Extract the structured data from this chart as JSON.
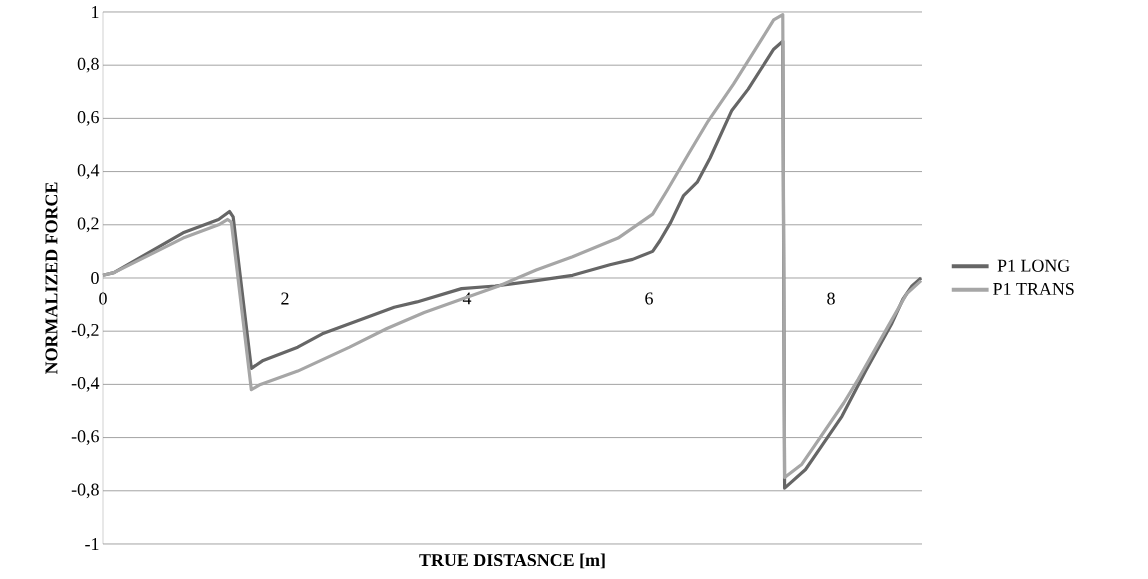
{
  "chart_data": {
    "type": "line",
    "xlabel": "TRUE DISTASNCE [m]",
    "ylabel": "NORMALIZED FORCE",
    "xlim": [
      0,
      9
    ],
    "xticks": [
      0,
      2,
      4,
      6,
      8
    ],
    "ylim": [
      -1,
      1
    ],
    "yticks": [
      {
        "value": -1,
        "label": "-1"
      },
      {
        "value": -0.8,
        "label": "-0,8"
      },
      {
        "value": -0.6,
        "label": "-0,6"
      },
      {
        "value": -0.4,
        "label": "-0,4"
      },
      {
        "value": -0.2,
        "label": "-0,2"
      },
      {
        "value": 0,
        "label": "0"
      },
      {
        "value": 0.2,
        "label": "0,2"
      },
      {
        "value": 0.4,
        "label": "0,4"
      },
      {
        "value": 0.6,
        "label": "0,6"
      },
      {
        "value": 0.8,
        "label": "0,8"
      },
      {
        "value": 1,
        "label": "1"
      }
    ],
    "grid": "y",
    "legend": "right",
    "marker": "none",
    "line_style": "solid",
    "series": [
      {
        "name": "P1 LONG",
        "color": "#666666",
        "x": [
          0,
          0.12,
          0.88,
          1.27,
          1.39,
          1.43,
          1.63,
          1.76,
          2.14,
          2.41,
          2.88,
          3.2,
          3.45,
          3.94,
          4.31,
          4.76,
          5.16,
          5.57,
          5.82,
          6.04,
          6.12,
          6.24,
          6.38,
          6.53,
          6.67,
          6.91,
          7.09,
          7.37,
          7.47,
          7.49,
          7.72,
          7.9,
          8.12,
          8.38,
          8.67,
          8.79,
          8.89,
          8.99
        ],
        "values": [
          0.01,
          0.02,
          0.17,
          0.22,
          0.25,
          0.23,
          -0.34,
          -0.31,
          -0.26,
          -0.21,
          -0.15,
          -0.11,
          -0.09,
          -0.04,
          -0.03,
          -0.01,
          0.01,
          0.05,
          0.07,
          0.1,
          0.14,
          0.21,
          0.31,
          0.36,
          0.45,
          0.63,
          0.71,
          0.86,
          0.89,
          -0.79,
          -0.72,
          -0.63,
          -0.52,
          -0.35,
          -0.17,
          -0.08,
          -0.03,
          0
        ]
      },
      {
        "name": "P1 TRANS",
        "color": "#a6a6a6",
        "x": [
          0,
          0.12,
          0.88,
          1.27,
          1.37,
          1.41,
          1.63,
          1.73,
          2.14,
          2.71,
          3.12,
          3.53,
          4.1,
          4.35,
          4.76,
          5.16,
          5.66,
          6.04,
          6.2,
          6.44,
          6.65,
          6.93,
          7.17,
          7.37,
          7.47,
          7.49,
          7.68,
          7.82,
          8.14,
          8.3,
          8.63,
          8.83,
          8.99
        ],
        "values": [
          0.01,
          0.02,
          0.15,
          0.2,
          0.22,
          0.21,
          -0.42,
          -0.4,
          -0.35,
          -0.26,
          -0.19,
          -0.13,
          -0.06,
          -0.03,
          0.03,
          0.08,
          0.15,
          0.24,
          0.33,
          0.47,
          0.59,
          0.73,
          0.86,
          0.97,
          0.99,
          -0.75,
          -0.7,
          -0.63,
          -0.47,
          -0.38,
          -0.18,
          -0.06,
          -0.01
        ]
      }
    ]
  }
}
